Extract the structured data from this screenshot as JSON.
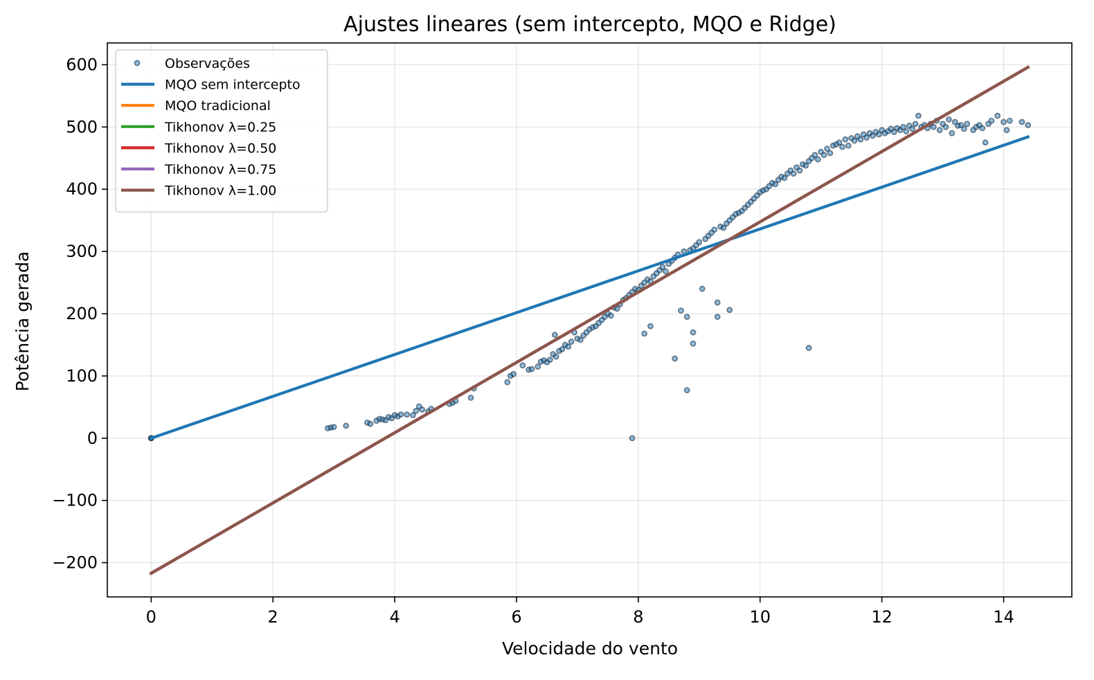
{
  "chart_data": {
    "type": "scatter",
    "title": "Ajustes lineares (sem intercepto, MQO e Ridge)",
    "xlabel": "Velocidade do vento",
    "ylabel": "Potência gerada",
    "xlim": [
      -0.72,
      15.12
    ],
    "ylim": [
      -255,
      635
    ],
    "xticks": [
      0,
      2,
      4,
      6,
      8,
      10,
      12,
      14
    ],
    "yticks": [
      -200,
      -100,
      0,
      100,
      200,
      300,
      400,
      500,
      600
    ],
    "xtick_labels": [
      "0",
      "2",
      "4",
      "6",
      "8",
      "10",
      "12",
      "14"
    ],
    "ytick_labels": [
      "−200",
      "−100",
      "0",
      "100",
      "200",
      "300",
      "400",
      "500",
      "600"
    ],
    "grid": true,
    "legend_position": "top-left",
    "scatter": {
      "name": "Observações",
      "color": "#1f77b4",
      "edge_color": "#1a2b40",
      "points": [
        [
          0,
          0
        ],
        [
          0,
          0
        ],
        [
          0,
          0
        ],
        [
          2.9,
          16
        ],
        [
          2.95,
          17
        ],
        [
          3.0,
          18
        ],
        [
          3.2,
          20
        ],
        [
          3.55,
          25
        ],
        [
          3.6,
          23
        ],
        [
          3.7,
          28
        ],
        [
          3.75,
          31
        ],
        [
          3.8,
          30
        ],
        [
          3.85,
          29
        ],
        [
          3.9,
          34
        ],
        [
          3.95,
          32
        ],
        [
          4.0,
          37
        ],
        [
          4.05,
          35
        ],
        [
          4.1,
          38
        ],
        [
          4.2,
          38
        ],
        [
          4.3,
          37
        ],
        [
          4.35,
          44
        ],
        [
          4.4,
          51
        ],
        [
          4.45,
          46
        ],
        [
          4.55,
          43
        ],
        [
          4.6,
          47
        ],
        [
          4.9,
          55
        ],
        [
          4.95,
          57
        ],
        [
          5.0,
          60
        ],
        [
          5.3,
          80
        ],
        [
          5.25,
          65
        ],
        [
          5.85,
          90
        ],
        [
          5.9,
          100
        ],
        [
          5.95,
          103
        ],
        [
          6.1,
          117
        ],
        [
          6.2,
          110
        ],
        [
          6.25,
          111
        ],
        [
          6.35,
          115
        ],
        [
          6.4,
          123
        ],
        [
          6.45,
          125
        ],
        [
          6.5,
          122
        ],
        [
          6.55,
          126
        ],
        [
          6.6,
          135
        ],
        [
          6.63,
          166
        ],
        [
          6.65,
          131
        ],
        [
          6.7,
          140
        ],
        [
          6.75,
          143
        ],
        [
          6.8,
          150
        ],
        [
          6.85,
          147
        ],
        [
          6.9,
          155
        ],
        [
          6.95,
          170
        ],
        [
          7.0,
          160
        ],
        [
          7.05,
          158
        ],
        [
          7.1,
          165
        ],
        [
          7.15,
          170
        ],
        [
          7.2,
          175
        ],
        [
          7.25,
          178
        ],
        [
          7.3,
          180
        ],
        [
          7.35,
          185
        ],
        [
          7.4,
          190
        ],
        [
          7.45,
          195
        ],
        [
          7.5,
          200
        ],
        [
          7.55,
          197
        ],
        [
          7.6,
          210
        ],
        [
          7.65,
          208
        ],
        [
          7.7,
          215
        ],
        [
          7.75,
          222
        ],
        [
          7.8,
          225
        ],
        [
          7.85,
          230
        ],
        [
          7.9,
          0
        ],
        [
          7.9,
          235
        ],
        [
          7.95,
          240
        ],
        [
          8.0,
          238
        ],
        [
          8.05,
          245
        ],
        [
          8.1,
          250
        ],
        [
          8.1,
          168
        ],
        [
          8.15,
          255
        ],
        [
          8.2,
          180
        ],
        [
          8.2,
          252
        ],
        [
          8.25,
          260
        ],
        [
          8.3,
          265
        ],
        [
          8.35,
          270
        ],
        [
          8.4,
          275
        ],
        [
          8.45,
          268
        ],
        [
          8.5,
          280
        ],
        [
          8.55,
          285
        ],
        [
          8.6,
          128
        ],
        [
          8.6,
          290
        ],
        [
          8.65,
          295
        ],
        [
          8.7,
          205
        ],
        [
          8.75,
          300
        ],
        [
          8.8,
          195
        ],
        [
          8.8,
          77
        ],
        [
          8.85,
          302
        ],
        [
          8.9,
          305
        ],
        [
          8.9,
          170
        ],
        [
          8.9,
          152
        ],
        [
          8.95,
          310
        ],
        [
          9.0,
          315
        ],
        [
          9.05,
          240
        ],
        [
          9.1,
          320
        ],
        [
          9.15,
          325
        ],
        [
          9.2,
          330
        ],
        [
          9.25,
          335
        ],
        [
          9.3,
          218
        ],
        [
          9.3,
          195
        ],
        [
          9.35,
          340
        ],
        [
          9.4,
          338
        ],
        [
          9.45,
          345
        ],
        [
          9.5,
          206
        ],
        [
          9.5,
          350
        ],
        [
          9.55,
          355
        ],
        [
          9.6,
          360
        ],
        [
          9.65,
          362
        ],
        [
          9.7,
          365
        ],
        [
          9.75,
          370
        ],
        [
          9.8,
          375
        ],
        [
          9.85,
          380
        ],
        [
          9.9,
          385
        ],
        [
          9.95,
          390
        ],
        [
          10.0,
          395
        ],
        [
          10.05,
          398
        ],
        [
          10.1,
          400
        ],
        [
          10.15,
          405
        ],
        [
          10.2,
          410
        ],
        [
          10.25,
          408
        ],
        [
          10.3,
          415
        ],
        [
          10.35,
          420
        ],
        [
          10.4,
          418
        ],
        [
          10.45,
          425
        ],
        [
          10.5,
          430
        ],
        [
          10.55,
          425
        ],
        [
          10.6,
          435
        ],
        [
          10.65,
          430
        ],
        [
          10.7,
          440
        ],
        [
          10.75,
          438
        ],
        [
          10.8,
          445
        ],
        [
          10.8,
          145
        ],
        [
          10.85,
          450
        ],
        [
          10.9,
          455
        ],
        [
          10.95,
          448
        ],
        [
          11.0,
          460
        ],
        [
          11.05,
          455
        ],
        [
          11.1,
          465
        ],
        [
          11.15,
          458
        ],
        [
          11.2,
          470
        ],
        [
          11.25,
          472
        ],
        [
          11.3,
          475
        ],
        [
          11.35,
          468
        ],
        [
          11.4,
          480
        ],
        [
          11.45,
          470
        ],
        [
          11.5,
          482
        ],
        [
          11.55,
          478
        ],
        [
          11.6,
          485
        ],
        [
          11.65,
          480
        ],
        [
          11.7,
          488
        ],
        [
          11.75,
          483
        ],
        [
          11.8,
          490
        ],
        [
          11.85,
          486
        ],
        [
          11.9,
          492
        ],
        [
          11.95,
          488
        ],
        [
          12.0,
          495
        ],
        [
          12.05,
          490
        ],
        [
          12.1,
          493
        ],
        [
          12.15,
          497
        ],
        [
          12.2,
          492
        ],
        [
          12.25,
          498
        ],
        [
          12.3,
          495
        ],
        [
          12.35,
          500
        ],
        [
          12.4,
          493
        ],
        [
          12.45,
          502
        ],
        [
          12.5,
          497
        ],
        [
          12.55,
          505
        ],
        [
          12.6,
          518
        ],
        [
          12.65,
          500
        ],
        [
          12.7,
          503
        ],
        [
          12.75,
          498
        ],
        [
          12.8,
          505
        ],
        [
          12.85,
          500
        ],
        [
          12.9,
          510
        ],
        [
          12.95,
          495
        ],
        [
          13.0,
          505
        ],
        [
          13.05,
          500
        ],
        [
          13.1,
          512
        ],
        [
          13.15,
          490
        ],
        [
          13.2,
          508
        ],
        [
          13.25,
          502
        ],
        [
          13.3,
          503
        ],
        [
          13.35,
          497
        ],
        [
          13.4,
          505
        ],
        [
          13.5,
          495
        ],
        [
          13.55,
          500
        ],
        [
          13.6,
          503
        ],
        [
          13.65,
          498
        ],
        [
          13.7,
          475
        ],
        [
          13.75,
          505
        ],
        [
          13.8,
          510
        ],
        [
          13.9,
          518
        ],
        [
          14.0,
          508
        ],
        [
          14.05,
          495
        ],
        [
          14.1,
          510
        ],
        [
          14.3,
          508
        ],
        [
          14.4,
          503
        ]
      ]
    },
    "lines": [
      {
        "name": "MQO sem intercepto",
        "color": "#1f77b4",
        "x": [
          0,
          14.4
        ],
        "y": [
          0,
          484
        ]
      },
      {
        "name": "MQO tradicional",
        "color": "#ff7f0e",
        "x": [
          0,
          14.4
        ],
        "y": [
          -217,
          596
        ]
      },
      {
        "name": "Tikhonov λ=0.25",
        "color": "#2ca02c",
        "x": [
          0,
          14.4
        ],
        "y": [
          -217,
          596
        ]
      },
      {
        "name": "Tikhonov λ=0.50",
        "color": "#d62728",
        "x": [
          0,
          14.4
        ],
        "y": [
          -217,
          596
        ]
      },
      {
        "name": "Tikhonov λ=0.75",
        "color": "#9467bd",
        "x": [
          0,
          14.4
        ],
        "y": [
          -217,
          596
        ]
      },
      {
        "name": "Tikhonov λ=1.00",
        "color": "#8c564b",
        "x": [
          0,
          14.4
        ],
        "y": [
          -217,
          596
        ]
      }
    ]
  }
}
